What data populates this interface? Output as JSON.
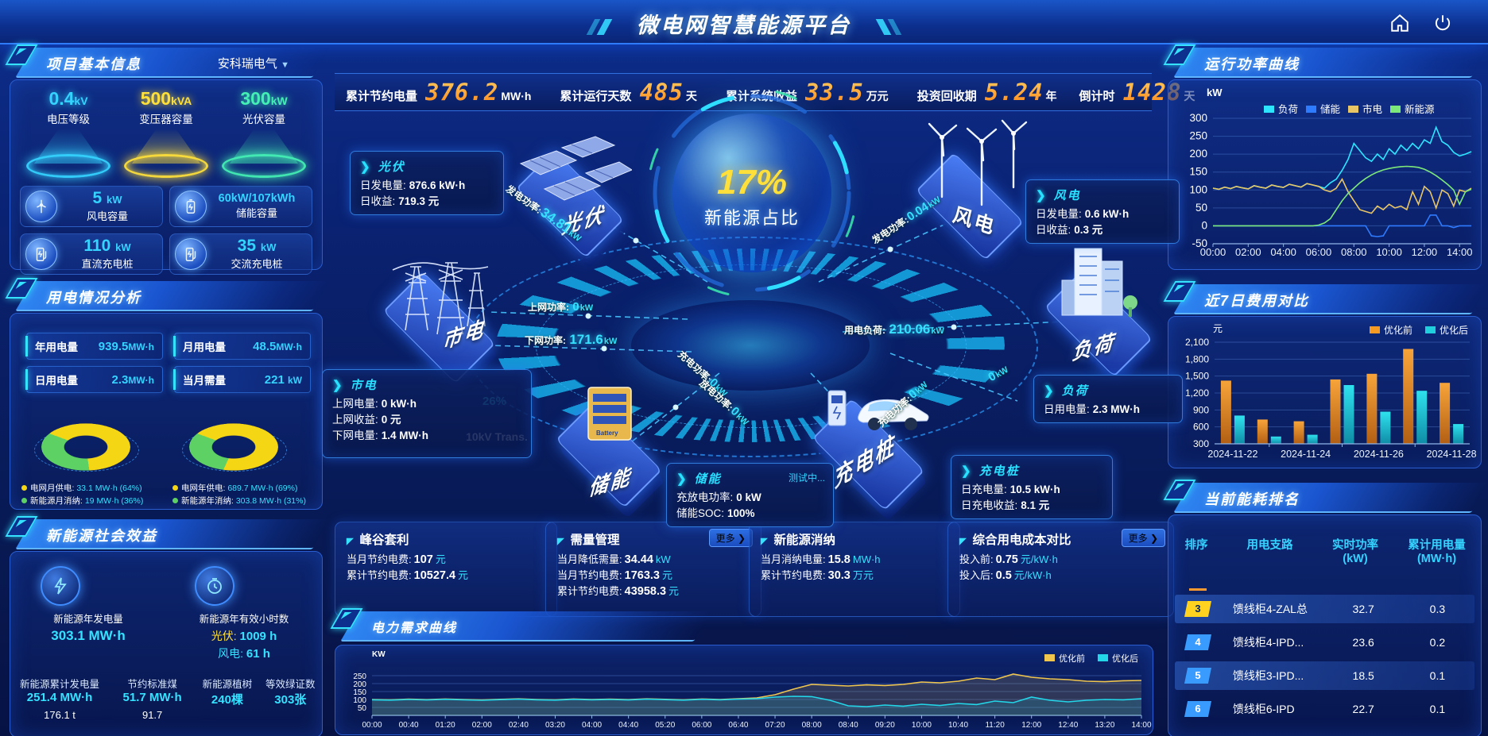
{
  "colors": {
    "cyan": "#35e2ff",
    "yellow": "#ffe03a",
    "green": "#44f0a4",
    "orange": "#ff9a2e",
    "blue": "#2f7bff"
  },
  "header": {
    "title": "微电网智慧能源平台"
  },
  "kpi_bar": {
    "items": [
      {
        "label": "累计节约电量",
        "value": "376.2",
        "unit": "MW·h"
      },
      {
        "label": "累计运行天数",
        "value": "485",
        "unit": "天"
      },
      {
        "label": "累计系统收益",
        "value": "33.5",
        "unit": "万元"
      },
      {
        "label": "投资回收期",
        "value": "5.24",
        "unit": "年"
      },
      {
        "label": "倒计时",
        "value": "1428",
        "unit": "天"
      }
    ]
  },
  "project": {
    "title": "项目基本信息",
    "company": "安科瑞电气",
    "spotlights": [
      {
        "value": "0.4",
        "unit": "kV",
        "label": "电压等级",
        "color": "#35d3ff"
      },
      {
        "value": "500",
        "unit": "kVA",
        "label": "变压器容量",
        "color": "#ffe03a"
      },
      {
        "value": "300",
        "unit": "kW",
        "label": "光伏容量",
        "color": "#44f0b4"
      }
    ],
    "cards": [
      {
        "value": "5",
        "unit": "kW",
        "label": "风电容量"
      },
      {
        "value": "60kW/107kWh",
        "unit": "",
        "label": "储能容量"
      },
      {
        "value": "110",
        "unit": "kW",
        "label": "直流充电桩"
      },
      {
        "value": "35",
        "unit": "kW",
        "label": "交流充电桩"
      }
    ]
  },
  "usage": {
    "title": "用电情况分析",
    "stats": [
      {
        "label": "年用电量",
        "value": "939.5",
        "unit": "MW·h"
      },
      {
        "label": "月用电量",
        "value": "48.5",
        "unit": "MW·h"
      },
      {
        "label": "日用电量",
        "value": "2.3",
        "unit": "MW·h"
      },
      {
        "label": "当月需量",
        "value": "221",
        "unit": "kW"
      }
    ],
    "donuts": [
      {
        "grid_pct": 64,
        "grid_label": "电网月供电:",
        "grid_value": "33.1 MW·h (64%)",
        "ne_label": "新能源月消纳:",
        "ne_value": "19 MW·h (36%)"
      },
      {
        "grid_pct": 69,
        "grid_label": "电网年供电:",
        "grid_value": "689.7 MW·h (69%)",
        "ne_label": "新能源年消纳:",
        "ne_value": "303.8 MW·h (31%)"
      }
    ]
  },
  "benefits": {
    "title": "新能源社会效益",
    "gen_label": "新能源年发电量",
    "gen_value": "303.1 MW·h",
    "hours_label": "新能源年有效小时数",
    "hours_pv_k": "光伏:",
    "hours_pv_v": "1009 h",
    "hours_wind_k": "风电:",
    "hours_wind_v": "61 h",
    "footer": [
      {
        "label": "新能源累计发电量",
        "value": "251.4 MW·h",
        "sub": "176.1 t"
      },
      {
        "label": "节约标准煤",
        "value": "51.7 MW·h",
        "sub": "91.7"
      },
      {
        "label": "新能源植树",
        "value": "240棵",
        "sub": ""
      },
      {
        "label": "等效绿证数",
        "value": "303张",
        "sub": ""
      }
    ]
  },
  "diagram": {
    "center_pct": "17%",
    "center_label": "新能源占比",
    "nodes": {
      "pv": "光伏",
      "grid": "市电",
      "wind": "风电",
      "storage": "储能",
      "charger": "充电桩",
      "load": "负荷"
    },
    "callouts": {
      "pv": {
        "title": "光伏",
        "r0l": "日发电量:",
        "r0v": "876.6 kW·h",
        "r1l": "日收益:",
        "r1v": "719.3 元"
      },
      "wind": {
        "title": "风电",
        "r0l": "日发电量:",
        "r0v": "0.6 kW·h",
        "r1l": "日收益:",
        "r1v": "0.3 元"
      },
      "grid": {
        "title": "市电",
        "r0l": "上网电量:",
        "r0v": "0 kW·h",
        "r1l": "上网收益:",
        "r1v": "0 元",
        "r2l": "下网电量:",
        "r2v": "1.4 MW·h"
      },
      "storage": {
        "title": "储能",
        "badge": "测试中...",
        "r0l": "充放电功率:",
        "r0v": "0 kW",
        "r1l": "储能SOC:",
        "r1v": "100%"
      },
      "load": {
        "title": "负荷",
        "r0l": "日用电量:",
        "r0v": "2.3 MW·h"
      },
      "charger": {
        "title": "充电桩",
        "r0l": "日充电量:",
        "r0v": "10.5 kW·h",
        "r1l": "日充电收益:",
        "r1v": "8.1 元"
      }
    },
    "flows": {
      "pv_power": {
        "label": "发电功率:",
        "value": "34.81",
        "unit": "kW"
      },
      "up_power": {
        "label": "上网功率:",
        "value": "0",
        "unit": "kW"
      },
      "down_power": {
        "label": "下网功率:",
        "value": "171.6",
        "unit": "kW"
      },
      "wind_power": {
        "label": "发电功率:",
        "value": "0.04",
        "unit": "kW"
      },
      "load_power": {
        "label": "用电负荷:",
        "value": "210.06",
        "unit": "kW"
      },
      "st_charge": {
        "label": "充电功率:",
        "value": "0",
        "unit": "kW"
      },
      "st_discharge": {
        "label": "放电功率:",
        "value": "0",
        "unit": "kW"
      },
      "ch_charge": {
        "label": "充电功率:",
        "value": "0",
        "unit": "kW"
      },
      "load_zero": {
        "label": "",
        "value": "0",
        "unit": "kW"
      }
    },
    "transformer": {
      "pct": "26%",
      "pct_num": 26,
      "label": "10kV Trans."
    }
  },
  "cards": [
    {
      "title": "峰谷套利",
      "rows": [
        [
          "当月节约电费:",
          "107",
          "元"
        ],
        [
          "累计节约电费:",
          "10527.4",
          "元"
        ]
      ]
    },
    {
      "title": "需量管理",
      "more": "更多 ❯",
      "rows": [
        [
          "当月降低需量:",
          "34.44",
          "kW"
        ],
        [
          "当月节约电费:",
          "1763.3",
          "元"
        ],
        [
          "累计节约电费:",
          "43958.3",
          "元"
        ]
      ]
    },
    {
      "title": "新能源消纳",
      "rows": [
        [
          "当月消纳电量:",
          "15.8",
          "MW·h"
        ],
        [
          "累计节约电费:",
          "30.3",
          "万元"
        ]
      ]
    },
    {
      "title": "综合用电成本对比",
      "more": "更多 ❯",
      "rows": [
        [
          "投入前:",
          "0.75",
          "元/kW·h"
        ],
        [
          "投入后:",
          "0.5",
          "元/kW·h"
        ]
      ]
    }
  ],
  "panel_titles": {
    "power": "运行功率曲线",
    "cost": "近7日费用对比",
    "rank": "当前能耗排名",
    "demand": "电力需求曲线"
  },
  "chart_data": [
    {
      "id": "power_curve",
      "type": "line",
      "ylabel": "kW",
      "ylim": [
        -50,
        300
      ],
      "yticks": [
        -50,
        0,
        50,
        100,
        150,
        200,
        250,
        300
      ],
      "xticks": [
        "00:00",
        "02:00",
        "04:00",
        "06:00",
        "08:00",
        "10:00",
        "12:00",
        "14:00"
      ],
      "xspan": 880,
      "xtick_step": 120,
      "grid": true,
      "legend_position": "top",
      "series": [
        {
          "name": "负荷",
          "color": "#2ee5ff",
          "values": [
            105,
            102,
            108,
            104,
            110,
            106,
            103,
            112,
            108,
            105,
            114,
            110,
            107,
            116,
            112,
            108,
            118,
            114,
            110,
            105,
            120,
            130,
            155,
            185,
            230,
            210,
            190,
            180,
            200,
            185,
            215,
            200,
            225,
            210,
            230,
            215,
            240,
            230,
            275,
            235,
            225,
            205,
            195,
            200,
            207
          ]
        },
        {
          "name": "储能",
          "color": "#2f7bff",
          "values": [
            0,
            0,
            0,
            0,
            0,
            0,
            0,
            0,
            0,
            0,
            0,
            0,
            0,
            0,
            0,
            0,
            0,
            0,
            0,
            0,
            0,
            0,
            0,
            0,
            0,
            0,
            0,
            -28,
            -30,
            -28,
            0,
            0,
            0,
            0,
            0,
            0,
            0,
            30,
            30,
            0,
            0,
            -5,
            0,
            0,
            0
          ]
        },
        {
          "name": "市电",
          "color": "#e8c565",
          "values": [
            105,
            102,
            108,
            104,
            110,
            106,
            103,
            112,
            108,
            105,
            114,
            110,
            107,
            116,
            112,
            108,
            118,
            114,
            110,
            100,
            95,
            105,
            130,
            95,
            70,
            45,
            40,
            35,
            55,
            45,
            60,
            50,
            55,
            45,
            95,
            60,
            110,
            95,
            50,
            100,
            90,
            55,
            100,
            95,
            105
          ]
        },
        {
          "name": "新能源",
          "color": "#7de87a",
          "values": [
            0,
            0,
            0,
            0,
            0,
            0,
            0,
            0,
            0,
            0,
            0,
            0,
            0,
            0,
            0,
            0,
            0,
            0,
            2,
            8,
            20,
            45,
            70,
            90,
            105,
            120,
            132,
            142,
            150,
            156,
            160,
            163,
            165,
            166,
            165,
            163,
            158,
            150,
            140,
            128,
            115,
            100,
            60,
            95,
            102
          ]
        }
      ]
    },
    {
      "id": "cost_compare",
      "type": "bar",
      "ylabel": "元",
      "ylim": [
        300,
        2100
      ],
      "yticks": [
        300,
        600,
        900,
        1200,
        1500,
        1800,
        2100
      ],
      "categories": [
        "2024-11-22",
        "2024-11-23",
        "2024-11-24",
        "2024-11-25",
        "2024-11-26",
        "2024-11-27",
        "2024-11-28"
      ],
      "xtick_every": 2,
      "grid": true,
      "legend_position": "top-right",
      "series": [
        {
          "name": "优化前",
          "color": "#f59a23",
          "values": [
            1420,
            730,
            700,
            1440,
            1540,
            1980,
            1380
          ]
        },
        {
          "name": "优化后",
          "color": "#1fd0dc",
          "values": [
            800,
            430,
            460,
            1340,
            870,
            1240,
            650
          ]
        }
      ]
    },
    {
      "id": "demand_curve",
      "type": "line",
      "ylabel": "KW",
      "ylim": [
        0,
        300
      ],
      "yticks": [
        50,
        100,
        150,
        200,
        250
      ],
      "xticks": [
        "00:00",
        "00:40",
        "01:20",
        "02:00",
        "02:40",
        "03:20",
        "04:00",
        "04:40",
        "05:20",
        "06:00",
        "06:40",
        "07:20",
        "08:00",
        "08:40",
        "09:20",
        "10:00",
        "10:40",
        "11:20",
        "12:00",
        "12:40",
        "13:20",
        "14:00"
      ],
      "xspan": 840,
      "xtick_step": 40,
      "grid": true,
      "legend_position": "top-right",
      "area": true,
      "series": [
        {
          "name": "优化前",
          "color": "#f0c64e",
          "values": [
            100,
            98,
            102,
            99,
            103,
            100,
            97,
            101,
            104,
            100,
            98,
            103,
            100,
            102,
            99,
            104,
            101,
            98,
            103,
            100,
            105,
            110,
            130,
            165,
            195,
            190,
            185,
            192,
            188,
            195,
            210,
            205,
            215,
            235,
            225,
            260,
            240,
            230,
            225,
            215,
            212,
            218,
            220
          ]
        },
        {
          "name": "优化后",
          "color": "#23d6e8",
          "values": [
            98,
            96,
            100,
            97,
            101,
            98,
            95,
            99,
            102,
            98,
            96,
            101,
            98,
            100,
            97,
            102,
            99,
            96,
            101,
            98,
            102,
            105,
            115,
            120,
            118,
            95,
            60,
            55,
            65,
            58,
            70,
            62,
            75,
            68,
            90,
            80,
            115,
            95,
            85,
            95,
            100,
            98,
            105
          ]
        }
      ]
    }
  ],
  "ranking": {
    "headers": [
      {
        "t": "排序",
        "s": ""
      },
      {
        "t": "用电支路",
        "s": ""
      },
      {
        "t": "实时功率",
        "s": "(kW)"
      },
      {
        "t": "累计用电量",
        "s": "(MW·h)"
      }
    ],
    "rows": [
      {
        "rank": "3",
        "name": "馈线柜4-ZAL总",
        "power": "32.7",
        "energy": "0.3",
        "badge": "#ffd21f",
        "hl": true
      },
      {
        "rank": "4",
        "name": "馈线柜4-IPD...",
        "power": "23.6",
        "energy": "0.2",
        "badge": "#3a9bff",
        "hl": false
      },
      {
        "rank": "5",
        "name": "馈线柜3-IPD...",
        "power": "18.5",
        "energy": "0.1",
        "badge": "#3a9bff",
        "hl": true
      },
      {
        "rank": "6",
        "name": "馈线柜6-IPD",
        "power": "22.7",
        "energy": "0.1",
        "badge": "#3a9bff",
        "hl": false
      }
    ]
  }
}
